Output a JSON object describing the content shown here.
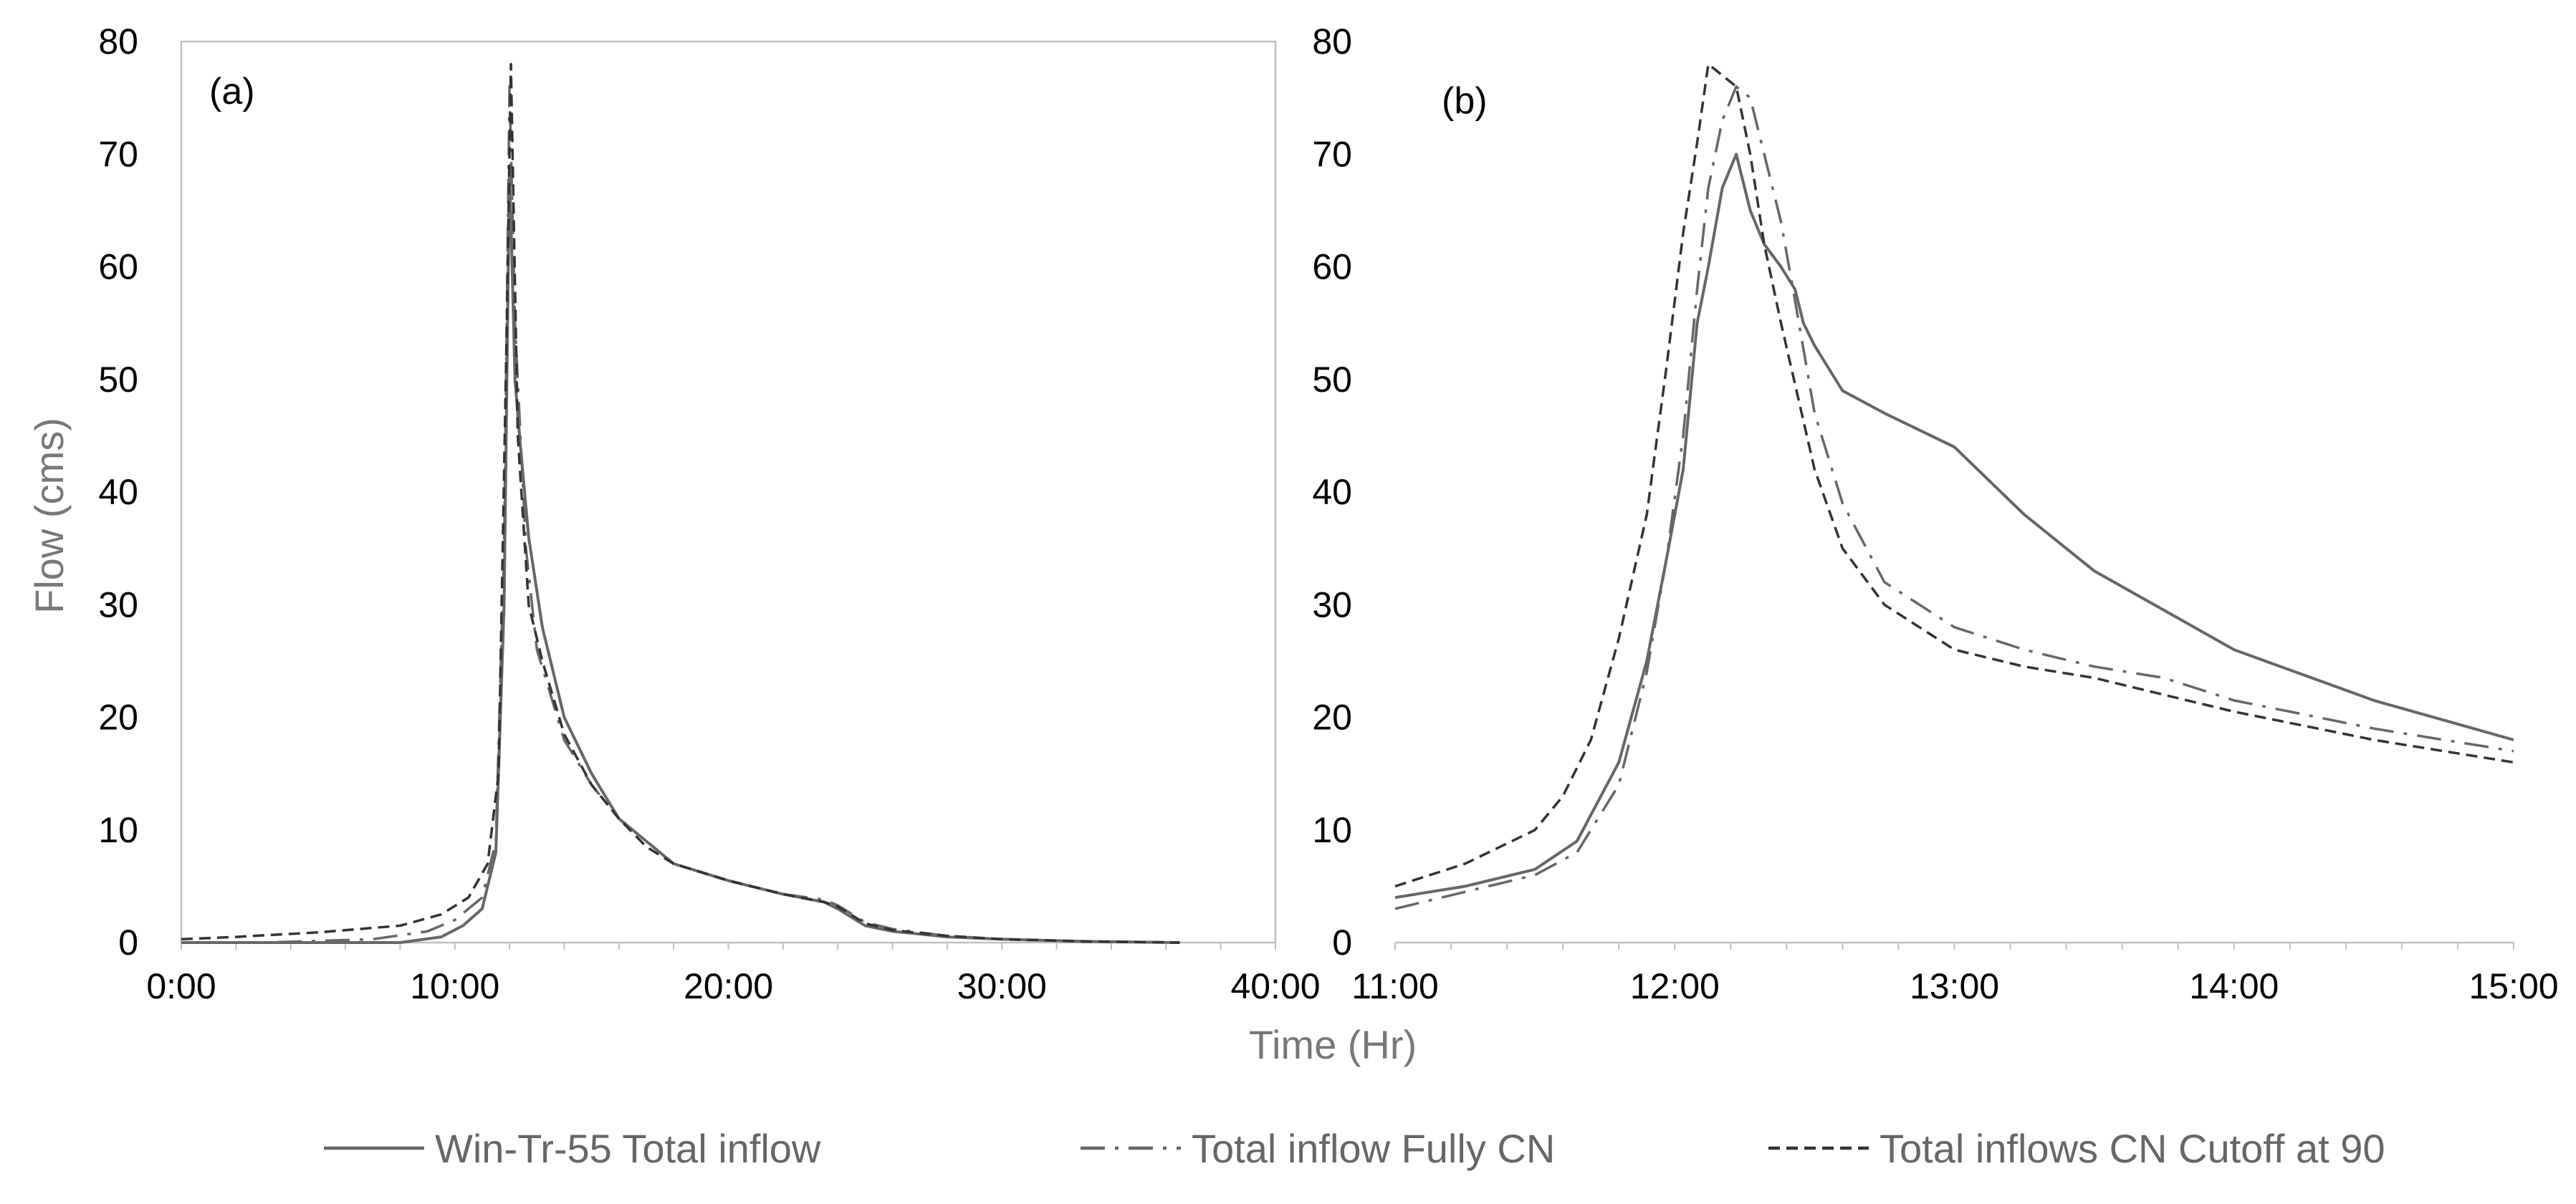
{
  "figure": {
    "ylabel": "Flow (cms)",
    "xlabel": "Time (Hr)"
  },
  "legend": [
    {
      "label": "Win-Tr-55 Total inflow",
      "dash": "solid",
      "color": "#666666"
    },
    {
      "label": "Total inflow Fully CN",
      "dash": "dashdot",
      "color": "#666666"
    },
    {
      "label": "Total inflows CN Cutoff at 90",
      "dash": "dashed",
      "color": "#333333"
    }
  ],
  "chart_data": [
    {
      "type": "line",
      "panel_label": "(a)",
      "xlim": [
        0,
        40
      ],
      "ylim": [
        0,
        80
      ],
      "x_ticks": [
        "0:00",
        "10:00",
        "20:00",
        "30:00",
        "40:00"
      ],
      "y_ticks": [
        "0",
        "10",
        "20",
        "30",
        "40",
        "50",
        "60",
        "70",
        "80"
      ],
      "grid": false,
      "series": [
        {
          "name": "Win-Tr-55 Total inflow",
          "x": [
            0,
            8,
            9.5,
            10.3,
            11.0,
            11.5,
            11.8,
            12.0,
            12.2,
            12.4,
            12.7,
            13.2,
            14,
            15,
            16,
            17,
            18,
            20,
            22,
            23.5,
            24,
            25,
            26,
            28,
            30,
            33,
            36.5
          ],
          "y": [
            0,
            0,
            0.5,
            1.5,
            3,
            8,
            30,
            69,
            50,
            44,
            36,
            28,
            20,
            15,
            11,
            9,
            7,
            5.5,
            4.3,
            3.6,
            3.0,
            1.5,
            1.0,
            0.5,
            0.3,
            0.1,
            0
          ]
        },
        {
          "name": "Total inflow Fully CN",
          "x": [
            0,
            3,
            7,
            9,
            10,
            11,
            11.5,
            11.8,
            12.0,
            12.2,
            12.6,
            13.0,
            13.5,
            14,
            15,
            16,
            17,
            18,
            20,
            22,
            23.5,
            24,
            25,
            26,
            28,
            30,
            33,
            36.5
          ],
          "y": [
            0,
            0,
            0.3,
            1,
            2,
            4,
            9,
            35,
            76,
            55,
            35,
            26,
            22,
            18,
            14,
            11,
            9,
            7,
            5.5,
            4.3,
            3.8,
            3.3,
            1.8,
            1.2,
            0.6,
            0.3,
            0.1,
            0
          ]
        },
        {
          "name": "Total inflows CN Cutoff at 90",
          "x": [
            0,
            2,
            5,
            8,
            9.5,
            10.5,
            11.2,
            11.6,
            11.9,
            12.05,
            12.3,
            12.7,
            13.2,
            14,
            15,
            16,
            17,
            18,
            20,
            22,
            23.5,
            24,
            25,
            26,
            28,
            30,
            33,
            36.5
          ],
          "y": [
            0.3,
            0.5,
            0.9,
            1.5,
            2.5,
            4,
            7,
            15,
            55,
            78,
            45,
            30,
            25,
            18.5,
            14,
            11,
            8.5,
            7,
            5.5,
            4.3,
            3.6,
            3.2,
            1.7,
            1.1,
            0.6,
            0.3,
            0.1,
            0
          ]
        }
      ]
    },
    {
      "type": "line",
      "panel_label": "(b)",
      "xlim": [
        11,
        15
      ],
      "ylim": [
        0,
        80
      ],
      "x_ticks": [
        "11:00",
        "12:00",
        "13:00",
        "14:00",
        "15:00"
      ],
      "y_ticks": [
        "0",
        "10",
        "20",
        "30",
        "40",
        "50",
        "60",
        "70",
        "80"
      ],
      "grid": false,
      "series": [
        {
          "name": "Win-Tr-55 Total inflow",
          "x": [
            11.0,
            11.25,
            11.5,
            11.65,
            11.8,
            11.9,
            11.97,
            12.03,
            12.08,
            12.12,
            12.17,
            12.22,
            12.27,
            12.32,
            12.38,
            12.43,
            12.46,
            12.5,
            12.6,
            12.75,
            13.0,
            13.25,
            13.5,
            14.0,
            14.5,
            15.0
          ],
          "y": [
            4,
            5,
            6.5,
            9,
            16,
            25,
            34,
            42,
            55,
            60,
            67,
            70,
            65,
            62,
            60,
            58,
            55,
            53,
            49,
            47,
            44,
            38,
            33,
            26,
            21.5,
            18
          ]
        },
        {
          "name": "Total inflow Fully CN",
          "x": [
            11.0,
            11.25,
            11.5,
            11.65,
            11.8,
            11.9,
            11.97,
            12.03,
            12.08,
            12.12,
            12.17,
            12.22,
            12.27,
            12.32,
            12.38,
            12.43,
            12.5,
            12.6,
            12.75,
            13.0,
            13.25,
            13.5,
            13.75,
            14.0,
            14.5,
            15.0
          ],
          "y": [
            3,
            4.5,
            6,
            8,
            14,
            24,
            34,
            45,
            58,
            67,
            73,
            76,
            75,
            70,
            64,
            57,
            47,
            39,
            32,
            28,
            26,
            24.5,
            23.5,
            21.5,
            19,
            17
          ]
        },
        {
          "name": "Total inflows CN Cutoff at 90",
          "x": [
            11.0,
            11.25,
            11.5,
            11.6,
            11.7,
            11.8,
            11.9,
            11.97,
            12.03,
            12.08,
            12.12,
            12.17,
            12.22,
            12.27,
            12.32,
            12.38,
            12.5,
            12.6,
            12.75,
            13.0,
            13.25,
            13.5,
            14.0,
            14.5,
            15.0
          ],
          "y": [
            5,
            7,
            10,
            13,
            18,
            27,
            38,
            51,
            63,
            71,
            78,
            77,
            76,
            70,
            62,
            55,
            42,
            35,
            30,
            26,
            24.5,
            23.5,
            20.5,
            18,
            16
          ]
        }
      ]
    }
  ]
}
